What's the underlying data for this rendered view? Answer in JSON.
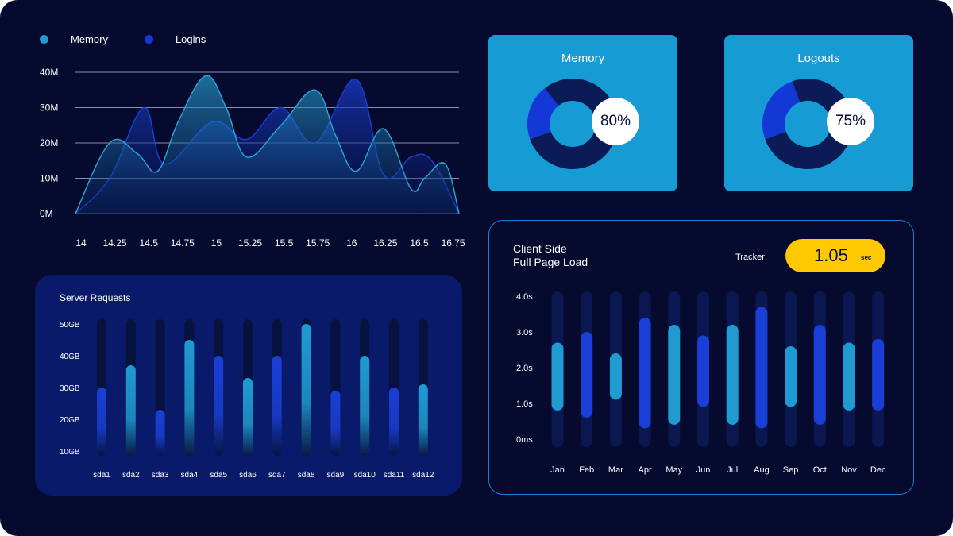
{
  "legend": [
    {
      "label": "Memory",
      "color": "#1f9bd1"
    },
    {
      "label": "Logins",
      "color": "#1438d6"
    }
  ],
  "chart_data": [
    {
      "type": "area",
      "x": [
        14,
        14.25,
        14.5,
        14.75,
        15,
        15.25,
        15.5,
        15.75,
        16,
        16.25,
        16.5,
        16.75
      ],
      "x_tick_labels": [
        "14",
        "14.25",
        "14.5",
        "14.75",
        "15",
        "15.25",
        "15.5",
        "15.75",
        "16",
        "16.25",
        "16.5",
        "16.75"
      ],
      "y_tick_labels": [
        "0M",
        "10M",
        "20M",
        "30M",
        "40M"
      ],
      "ylim": [
        0,
        40
      ],
      "grid": true,
      "legend_position": "top-left",
      "series": [
        {
          "name": "Memory",
          "color": "#2aa8d8",
          "points": [
            [
              14.0,
              0
            ],
            [
              14.25,
              20
            ],
            [
              14.45,
              17
            ],
            [
              14.6,
              12
            ],
            [
              14.75,
              26
            ],
            [
              14.95,
              39
            ],
            [
              15.1,
              30
            ],
            [
              15.25,
              16
            ],
            [
              15.5,
              25
            ],
            [
              15.75,
              35
            ],
            [
              15.9,
              22
            ],
            [
              16.05,
              12
            ],
            [
              16.25,
              24
            ],
            [
              16.45,
              7
            ],
            [
              16.55,
              10
            ],
            [
              16.7,
              14
            ],
            [
              16.8,
              0
            ]
          ]
        },
        {
          "name": "Logins",
          "color": "#1a3fd6",
          "points": [
            [
              14.0,
              0
            ],
            [
              14.25,
              10
            ],
            [
              14.5,
              30
            ],
            [
              14.65,
              14
            ],
            [
              15.0,
              26
            ],
            [
              15.25,
              21
            ],
            [
              15.5,
              30
            ],
            [
              15.75,
              20
            ],
            [
              16.05,
              38
            ],
            [
              16.25,
              11
            ],
            [
              16.45,
              16
            ],
            [
              16.6,
              15
            ],
            [
              16.8,
              0
            ]
          ]
        }
      ]
    },
    {
      "type": "bar",
      "title": "Server Requests",
      "categories": [
        "sda1",
        "sda2",
        "sda3",
        "sda4",
        "sda5",
        "sda6",
        "sda7",
        "sda8",
        "sda9",
        "sda10",
        "sda11",
        "sda12"
      ],
      "y_tick_labels": [
        "50GB",
        "40GB",
        "30GB",
        "20GB",
        "10GB"
      ],
      "ylim": [
        10,
        50
      ],
      "values": [
        30,
        37,
        23,
        45,
        40,
        33,
        40,
        50,
        29,
        40,
        30,
        31
      ],
      "colors": [
        "#1a3fd6",
        "#1f9bd1",
        "#1a3fd6",
        "#1f9bd1",
        "#1a3fd6",
        "#1f9bd1",
        "#1a3fd6",
        "#1f9bd1",
        "#1a3fd6",
        "#1f9bd1",
        "#1a3fd6",
        "#1f9bd1"
      ]
    },
    {
      "type": "bar",
      "title": "Client Side Full Page Load",
      "categories": [
        "Jan",
        "Feb",
        "Mar",
        "Apr",
        "May",
        "Jun",
        "Jul",
        "Aug",
        "Sep",
        "Oct",
        "Nov",
        "Dec"
      ],
      "y_tick_labels": [
        "4.0s",
        "3.0s",
        "2.0s",
        "1.0s",
        "0ms"
      ],
      "ylim": [
        0,
        4
      ],
      "ranges": [
        [
          0.8,
          2.7
        ],
        [
          0.6,
          3.0
        ],
        [
          1.1,
          2.4
        ],
        [
          0.3,
          3.4
        ],
        [
          0.4,
          3.2
        ],
        [
          0.9,
          2.9
        ],
        [
          0.4,
          3.2
        ],
        [
          0.3,
          3.7
        ],
        [
          0.9,
          2.6
        ],
        [
          0.4,
          3.2
        ],
        [
          0.8,
          2.7
        ],
        [
          0.8,
          2.8
        ]
      ],
      "colors": [
        "#1f9bd1",
        "#1a3fd6",
        "#1f9bd1",
        "#1a3fd6",
        "#1f9bd1",
        "#1a3fd6",
        "#1f9bd1",
        "#1a3fd6",
        "#1f9bd1",
        "#1a3fd6",
        "#1f9bd1",
        "#1a3fd6"
      ]
    },
    {
      "type": "pie",
      "title": "Memory",
      "value_label": "80%",
      "values": [
        80,
        20
      ],
      "colors": [
        "#0a1b55",
        "#1438d6"
      ]
    },
    {
      "type": "pie",
      "title": "Logouts",
      "value_label": "75%",
      "values": [
        75,
        25
      ],
      "colors": [
        "#0a1b55",
        "#1438d6"
      ]
    }
  ],
  "cards": [
    {
      "title": "Memory",
      "value": "80%"
    },
    {
      "title": "Logouts",
      "value": "75%"
    }
  ],
  "server": {
    "title": "Server Requests"
  },
  "client": {
    "title_line1": "Client Side",
    "title_line2": "Full Page Load",
    "tracker_label": "Tracker",
    "tracker_value": "1.05",
    "tracker_unit": "sec"
  }
}
